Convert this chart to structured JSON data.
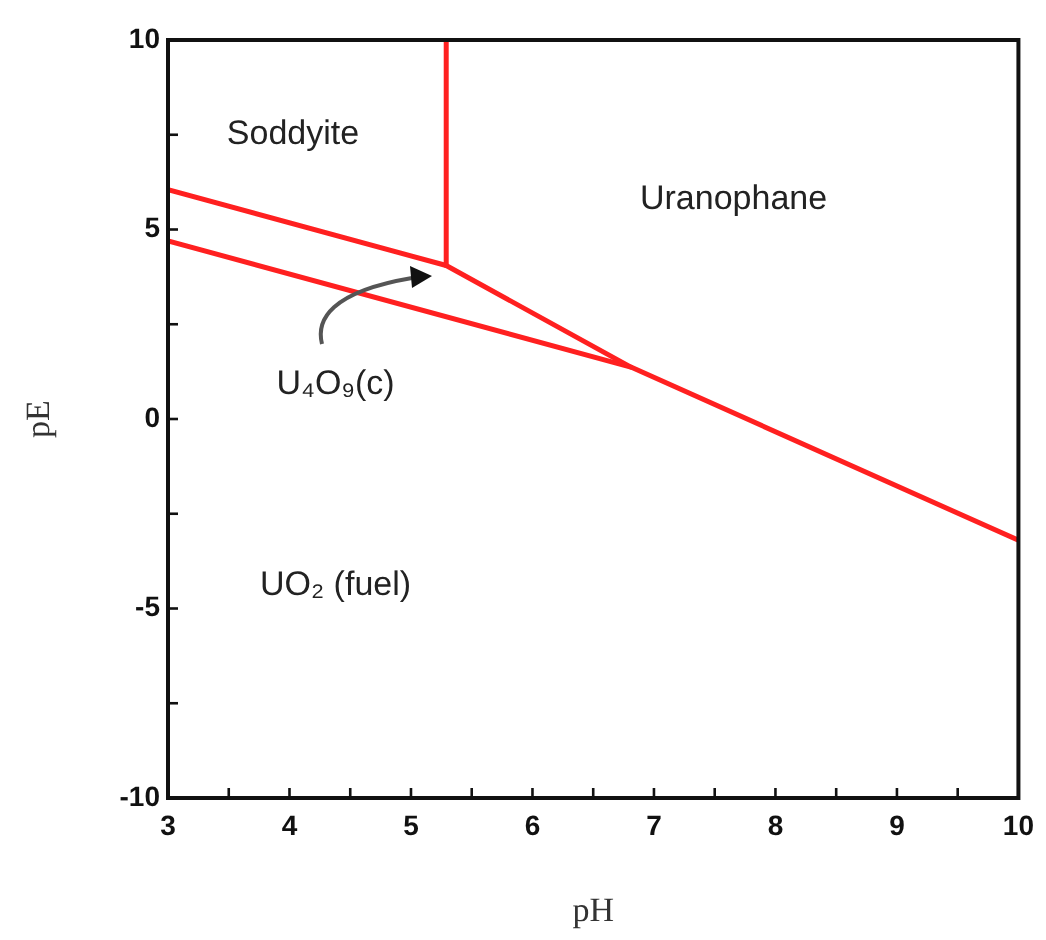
{
  "chart_data": {
    "type": "line",
    "xlabel": "pH",
    "ylabel": "pE",
    "xlim": [
      3,
      10
    ],
    "ylim": [
      -10,
      10
    ],
    "xticks": [
      3,
      {
        "value": 3.5,
        "label": null
      },
      4,
      {
        "value": 4.5,
        "label": null
      },
      5,
      {
        "value": 5.5,
        "label": null
      },
      6,
      {
        "value": 6.5,
        "label": null
      },
      7,
      {
        "value": 7.5,
        "label": null
      },
      8,
      {
        "value": 8.5,
        "label": null
      },
      9,
      {
        "value": 9.5,
        "label": null
      },
      10
    ],
    "yticks": [
      -10,
      {
        "value": -7.5,
        "label": null
      },
      -5,
      {
        "value": -2.5,
        "label": null
      },
      0,
      {
        "value": 2.5,
        "label": null
      },
      5,
      {
        "value": 7.5,
        "label": null
      },
      10
    ],
    "grid": false,
    "legend": false,
    "marker": "none",
    "line_style": "solid",
    "series": [
      {
        "type": "line",
        "color": "#ff2020",
        "x": [
          3,
          5.29,
          6.81,
          10
        ],
        "values": [
          6.05,
          4.05,
          1.37,
          -3.2
        ]
      },
      {
        "type": "line",
        "color": "#ff2020",
        "x": [
          5.29,
          5.29
        ],
        "values": [
          10,
          4.05
        ]
      },
      {
        "type": "line",
        "color": "#ff2020",
        "x": [
          3,
          6.81
        ],
        "values": [
          4.7,
          1.37
        ]
      }
    ],
    "annotations": [
      "Soddyite",
      "Uranophane",
      "U₄O₉(c)",
      "UO₂ (fuel)"
    ]
  }
}
